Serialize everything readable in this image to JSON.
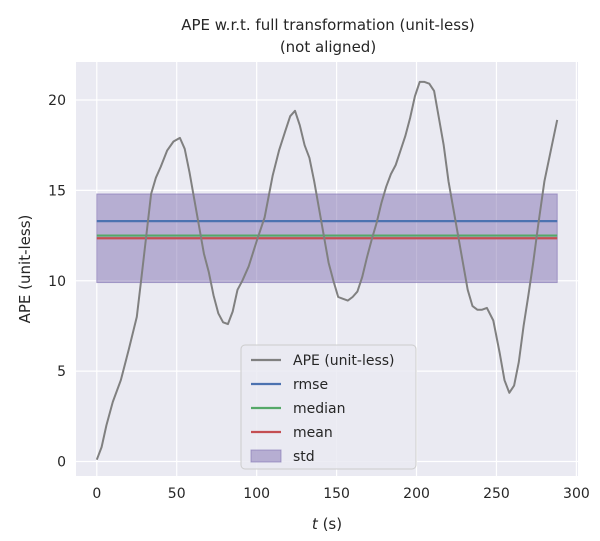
{
  "chart_data": {
    "type": "line",
    "title_line1": "APE w.r.t. full transformation (unit-less)",
    "title_line2": "(not aligned)",
    "xlabel_italic": "t",
    "xlabel_unit": " (s)",
    "ylabel": "APE (unit-less)",
    "xlim": [
      -13,
      301
    ],
    "ylim": [
      -0.8,
      22.1
    ],
    "xticks": [
      0,
      50,
      100,
      150,
      200,
      250,
      300
    ],
    "yticks": [
      0,
      5,
      10,
      15,
      20
    ],
    "grid": true,
    "legend_position": "bottom-center",
    "series": [
      {
        "name": "APE (unit-less)",
        "color": "#808080",
        "x": [
          0,
          3,
          6,
          10,
          15,
          20,
          25,
          28,
          31,
          34,
          37,
          40,
          44,
          48,
          52,
          55,
          58,
          61,
          64,
          67,
          70,
          73,
          76,
          79,
          82,
          85,
          88,
          91,
          95,
          100,
          105,
          110,
          114,
          118,
          121,
          124,
          127,
          130,
          133,
          136,
          139,
          142,
          145,
          148,
          151,
          154,
          157,
          160,
          163,
          166,
          169,
          172,
          175,
          178,
          181,
          184,
          187,
          190,
          193,
          196,
          199,
          202,
          205,
          208,
          211,
          214,
          217,
          220,
          223,
          226,
          229,
          232,
          235,
          238,
          241,
          244,
          248,
          252,
          255,
          258,
          261,
          264,
          267,
          270,
          273,
          276,
          280,
          284,
          288
        ],
        "y": [
          0.1,
          0.8,
          2.0,
          3.3,
          4.5,
          6.2,
          8.0,
          10.2,
          12.5,
          14.8,
          15.7,
          16.3,
          17.2,
          17.7,
          17.9,
          17.3,
          16.0,
          14.5,
          13.0,
          11.5,
          10.5,
          9.2,
          8.2,
          7.7,
          7.6,
          8.3,
          9.5,
          10.0,
          10.8,
          12.2,
          13.5,
          15.8,
          17.2,
          18.3,
          19.1,
          19.4,
          18.6,
          17.5,
          16.8,
          15.5,
          14.0,
          12.5,
          11.0,
          10.0,
          9.1,
          9.0,
          8.9,
          9.1,
          9.4,
          10.2,
          11.3,
          12.3,
          13.2,
          14.3,
          15.2,
          15.9,
          16.4,
          17.2,
          18.0,
          19.0,
          20.2,
          21.0,
          21.0,
          20.9,
          20.5,
          19.0,
          17.5,
          15.5,
          14.0,
          12.5,
          11.0,
          9.5,
          8.6,
          8.4,
          8.4,
          8.5,
          7.8,
          6.0,
          4.5,
          3.8,
          4.2,
          5.5,
          7.5,
          9.2,
          11.0,
          13.0,
          15.5,
          17.2,
          18.9
        ]
      },
      {
        "name": "rmse",
        "color": "#4c72b0",
        "value": 13.3
      },
      {
        "name": "median",
        "color": "#55a868",
        "value": 12.5
      },
      {
        "name": "mean",
        "color": "#c44e52",
        "value": 12.35
      },
      {
        "name": "std",
        "color": "#8172b2",
        "range": [
          9.9,
          14.8
        ]
      }
    ]
  }
}
